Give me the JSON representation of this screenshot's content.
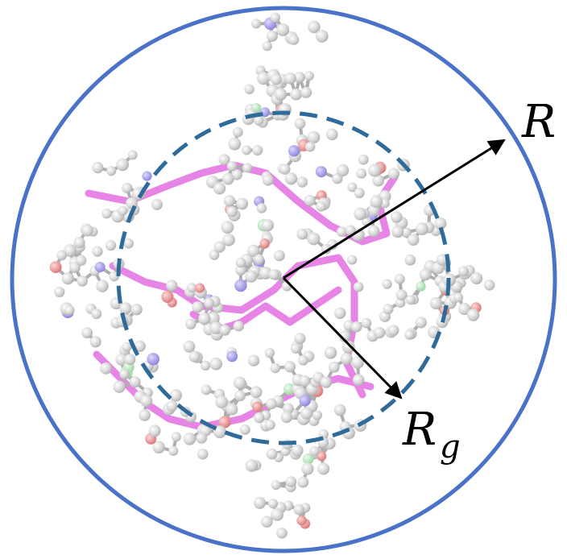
{
  "labels": {
    "outer_radius": "R",
    "gyration_radius_base": "R",
    "gyration_radius_sub": "g"
  },
  "colors": {
    "outer_circle": "#4a72c8",
    "inner_circle": "#2f6b9a",
    "arrow": "#000000",
    "carbon_atom": "#c9c9c9",
    "backbone_bond": "#e57be6",
    "oxygen_atom": "#e07a7a",
    "nitrogen_atom": "#8d86e0",
    "chlorine_atom": "#9fdca8"
  },
  "icons": {
    "molecule": "molecule-ball-and-stick-icon"
  }
}
